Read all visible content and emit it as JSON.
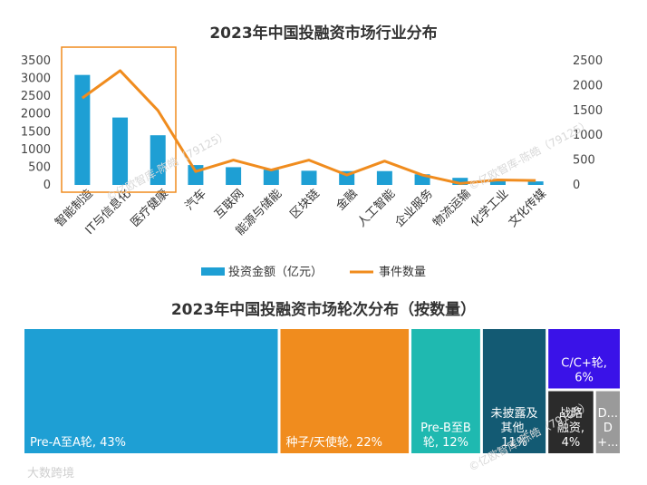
{
  "chart_data": [
    {
      "type": "bar+line",
      "title": "2023年中国投融资市场行业分布",
      "categories": [
        "智能制造",
        "IT与信息化",
        "医疗健康",
        "汽车",
        "互联网",
        "能源与储能",
        "区块链",
        "金融",
        "人工智能",
        "企业服务",
        "物流运输",
        "化学工业",
        "文化传媒"
      ],
      "series": [
        {
          "name": "投资金额（亿元）",
          "type": "bar",
          "axis": "left",
          "color": "#1e9fd4",
          "values": [
            3100,
            1900,
            1400,
            560,
            500,
            430,
            400,
            390,
            390,
            300,
            200,
            110,
            100
          ]
        },
        {
          "name": "事件数量",
          "type": "line",
          "axis": "right",
          "color": "#f08c1e",
          "values": [
            1750,
            2300,
            1500,
            270,
            500,
            300,
            500,
            200,
            480,
            200,
            30,
            100,
            90
          ]
        }
      ],
      "left_axis": {
        "ticks": [
          "0",
          "500",
          "1000",
          "1500",
          "2000",
          "2500",
          "3000",
          "3500"
        ],
        "ylim": [
          0,
          3500
        ]
      },
      "right_axis": {
        "ticks": [
          "0",
          "500",
          "1000",
          "1500",
          "2000",
          "2500"
        ],
        "ylim": [
          0,
          2500
        ]
      },
      "highlight_box": "智能制造, IT与信息化, 医疗健康"
    },
    {
      "type": "treemap",
      "title": "2023年中国投融资市场轮次分布（按数量）",
      "items": [
        {
          "label": "Pre-A至A轮, 43%",
          "value": 43,
          "color": "#1e9fd4"
        },
        {
          "label": "种子/天使轮, 22%",
          "value": 22,
          "color": "#f08c1e"
        },
        {
          "label": "Pre-B至B轮, 12%",
          "value": 12,
          "color": "#1fb9b0"
        },
        {
          "label": "未披露及其他, 11%",
          "value": 11,
          "color": "#135a73"
        },
        {
          "label": "C/C+轮, 6%",
          "value": 6,
          "color": "#3a12e8"
        },
        {
          "label": "战略融资, 4%",
          "value": 4,
          "color": "#2b2b2b"
        },
        {
          "label": "D轮+...",
          "value": 2,
          "color": "#9a9a9a"
        }
      ],
      "display_lines": {
        "Pre-A至A轮, 43%": [
          "Pre-A至A轮, 43%"
        ],
        "种子/天使轮, 22%": [
          "种子/天使轮, 22%"
        ],
        "Pre-B至B轮, 12%": [
          "Pre-B至B",
          "轮, 12%"
        ],
        "未披露及其他, 11%": [
          "未披露及",
          "其他,",
          "11%"
        ],
        "C/C+轮, 6%": [
          "C/C+轮,",
          "6%"
        ],
        "战略融资, 4%": [
          "战略",
          "融资,",
          "4%"
        ],
        "D轮+...": [
          "D...",
          "D",
          "+..."
        ]
      }
    }
  ],
  "watermark": {
    "text1": "©亿欧智库-陈皓（79125）",
    "logo": "大数跨境"
  }
}
